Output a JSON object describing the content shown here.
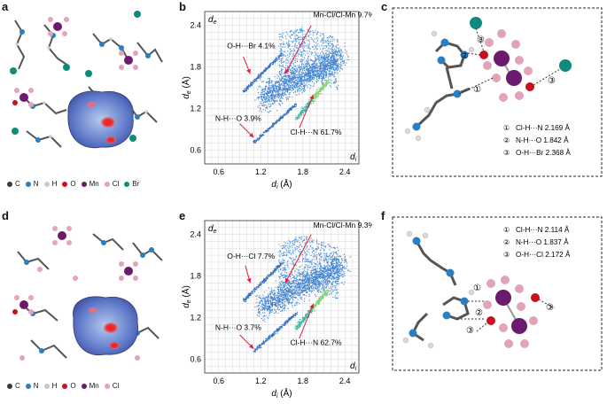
{
  "panels": {
    "a": {
      "label": "a"
    },
    "b": {
      "label": "b"
    },
    "c": {
      "label": "c"
    },
    "d": {
      "label": "d"
    },
    "e": {
      "label": "e"
    },
    "f": {
      "label": "f"
    }
  },
  "legend_top": [
    {
      "symbol": "C",
      "color": "#3a3a3a"
    },
    {
      "symbol": "N",
      "color": "#2a7fc0"
    },
    {
      "symbol": "H",
      "color": "#c8c8c8"
    },
    {
      "symbol": "O",
      "color": "#c8101e"
    },
    {
      "symbol": "Mn",
      "color": "#6a1b6b"
    },
    {
      "symbol": "Cl",
      "color": "#e3a3b8"
    },
    {
      "symbol": "Br",
      "color": "#0f8a7d"
    }
  ],
  "legend_bottom": [
    {
      "symbol": "C",
      "color": "#3a3a3a"
    },
    {
      "symbol": "N",
      "color": "#2a7fc0"
    },
    {
      "symbol": "H",
      "color": "#c8c8c8"
    },
    {
      "symbol": "O",
      "color": "#c8101e"
    },
    {
      "symbol": "Mn",
      "color": "#6a1b6b"
    },
    {
      "symbol": "Cl",
      "color": "#e3a3b8"
    }
  ],
  "chart_data": [
    {
      "type": "scatter",
      "panel": "b",
      "xlabel": "d",
      "xlabel_sub": "i",
      "xlabel_unit": " (Å)",
      "ylabel": "d",
      "ylabel_sub": "e",
      "ylabel_unit": " (Å)",
      "corner_x": "d",
      "corner_x_sub": "i",
      "corner_y": "d",
      "corner_y_sub": "e",
      "xlim": [
        0.4,
        2.6
      ],
      "ylim": [
        0.4,
        2.6
      ],
      "xticks": [
        "0.6",
        "1.2",
        "1.8",
        "2.4"
      ],
      "yticks": [
        "0.6",
        "1.2",
        "1.8",
        "2.4"
      ],
      "annotations": [
        {
          "text": "Mn-Cl/Cl-Mn 9.7%"
        },
        {
          "text": "O-H···Br 4.1%"
        },
        {
          "text": "N-H···O 3.9%"
        },
        {
          "text": "Cl-H···N 61.7%"
        }
      ]
    },
    {
      "type": "scatter",
      "panel": "e",
      "xlabel": "d",
      "xlabel_sub": "i",
      "xlabel_unit": " (Å)",
      "ylabel": "d",
      "ylabel_sub": "e",
      "ylabel_unit": " (Å)",
      "corner_x": "d",
      "corner_x_sub": "i",
      "corner_y": "d",
      "corner_y_sub": "e",
      "xlim": [
        0.4,
        2.6
      ],
      "ylim": [
        0.4,
        2.6
      ],
      "xticks": [
        "0.6",
        "1.2",
        "1.8",
        "2.4"
      ],
      "yticks": [
        "0.6",
        "1.2",
        "1.8",
        "2.4"
      ],
      "annotations": [
        {
          "text": "Mn-Cl/Cl-Mn 9.3%"
        },
        {
          "text": "O-H···Cl 7.7%"
        },
        {
          "text": "N-H···O 3.7%"
        },
        {
          "text": "Cl-H···N 62.7%"
        }
      ]
    }
  ],
  "bonds_c": [
    {
      "num": "①",
      "text": "Cl-H···N 2.169 Å"
    },
    {
      "num": "②",
      "text": "N-H···O 1.842 Å"
    },
    {
      "num": "③",
      "text": "O-H···Br 2.368 Å"
    }
  ],
  "bonds_f": [
    {
      "num": "①",
      "text": "Cl-H···N 2.114 Å"
    },
    {
      "num": "②",
      "text": "N-H···O 1.837 Å"
    },
    {
      "num": "③",
      "text": "O-H···Cl 2.172 Å"
    }
  ],
  "markers_c": [
    "③",
    "②",
    "①",
    "③"
  ],
  "markers_f": [
    "①",
    "②",
    "③",
    "③"
  ]
}
